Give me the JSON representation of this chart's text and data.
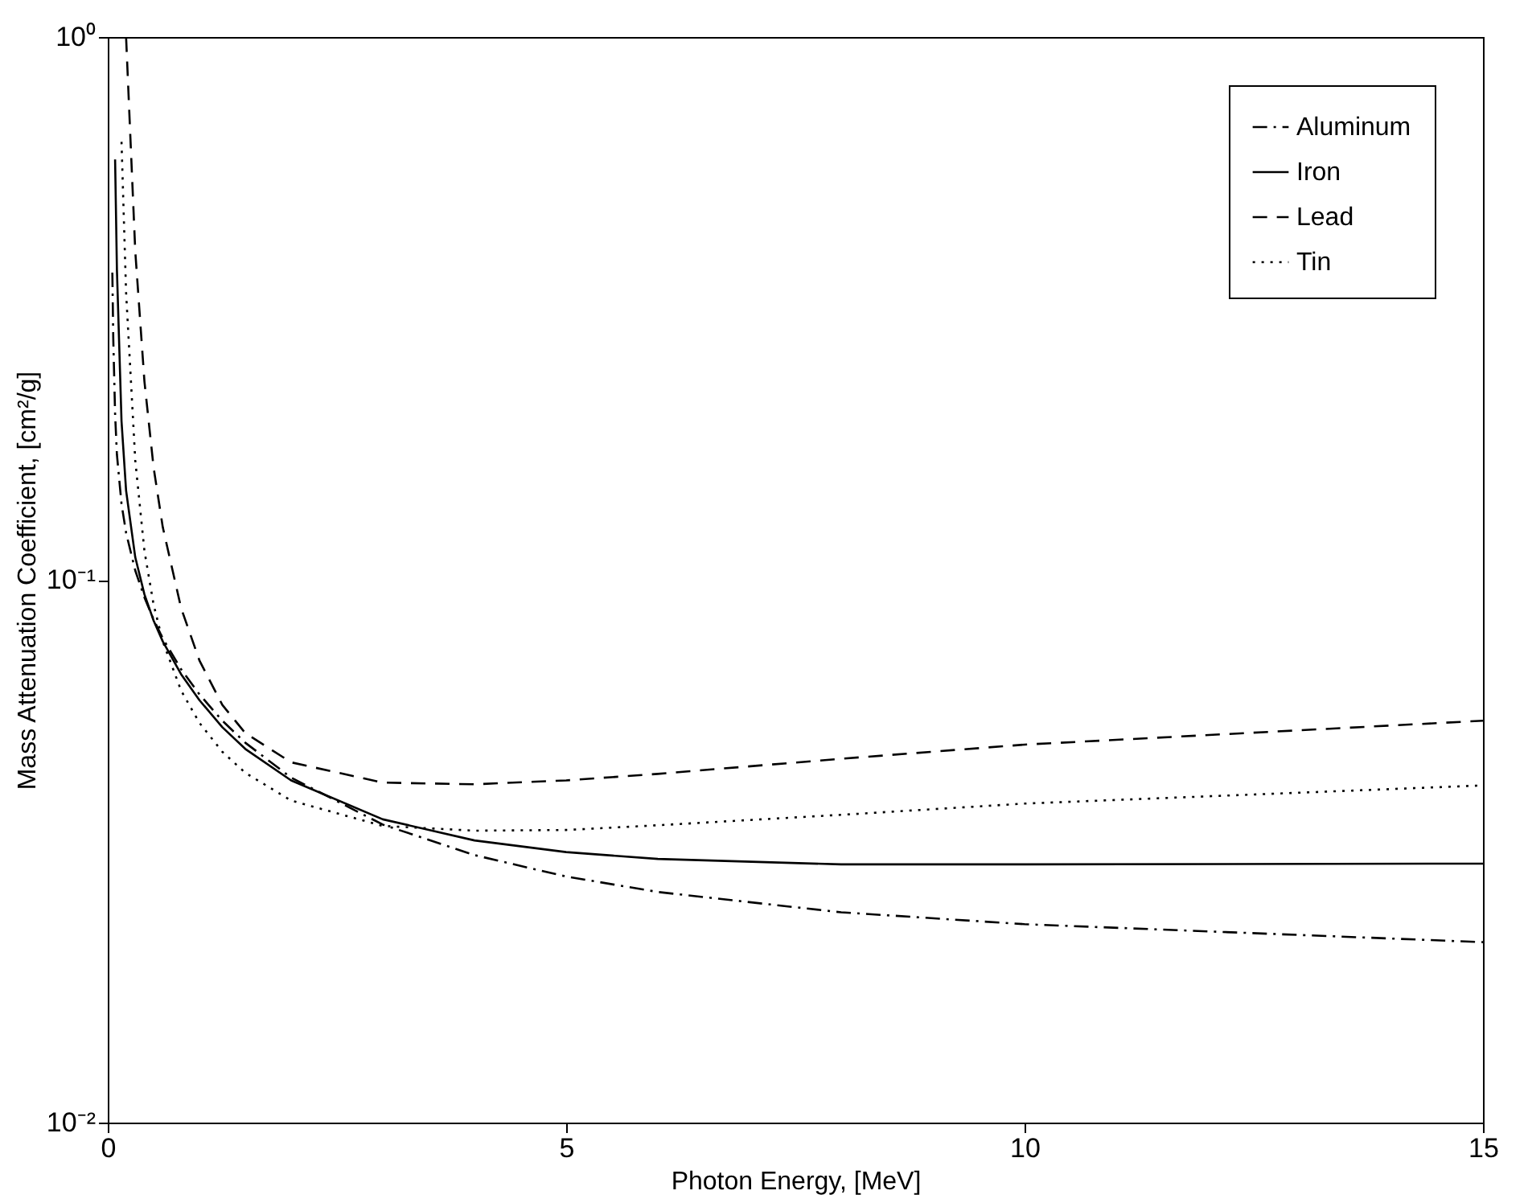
{
  "chart_data": {
    "type": "line",
    "xlabel": "Photon Energy, [MeV]",
    "ylabel": "Mass Attenuation Coefficient, [cm²/g]",
    "log": "y",
    "xlim": [
      0,
      15
    ],
    "xticks": [
      0,
      5,
      10,
      15
    ],
    "ylim": [
      0.01,
      1
    ],
    "yticks": [
      {
        "value": 1,
        "label": "10⁰"
      },
      {
        "value": 0.1,
        "label": "10⁻¹"
      },
      {
        "value": 0.01,
        "label": "10⁻²"
      }
    ],
    "grid": false,
    "legend": "top right",
    "marker": "none",
    "series": [
      {
        "name": "Aluminum",
        "color": "#000000",
        "line_style": "dashdot",
        "x": [
          0.05,
          0.06,
          0.08,
          0.1,
          0.15,
          0.2,
          0.3,
          0.4,
          0.5,
          0.6,
          0.8,
          1,
          1.25,
          1.5,
          2,
          3,
          4,
          5,
          6,
          8,
          10,
          15
        ],
        "values": [
          0.368,
          0.278,
          0.202,
          0.17,
          0.138,
          0.122,
          0.104,
          0.0928,
          0.0845,
          0.078,
          0.0684,
          0.0615,
          0.055,
          0.0501,
          0.0432,
          0.0354,
          0.0311,
          0.0284,
          0.0266,
          0.0244,
          0.0232,
          0.0215
        ]
      },
      {
        "name": "Iron",
        "color": "#000000",
        "line_style": "solid",
        "x": [
          0.08,
          0.1,
          0.15,
          0.2,
          0.3,
          0.4,
          0.5,
          0.6,
          0.8,
          1,
          1.25,
          1.5,
          2,
          3,
          4,
          5,
          6,
          8,
          10,
          15
        ],
        "values": [
          0.595,
          0.372,
          0.196,
          0.146,
          0.11,
          0.094,
          0.0841,
          0.077,
          0.067,
          0.06,
          0.0535,
          0.0488,
          0.0427,
          0.0362,
          0.0331,
          0.0315,
          0.0306,
          0.0299,
          0.0299,
          0.03
        ]
      },
      {
        "name": "Lead",
        "color": "#000000",
        "line_style": "dashed",
        "x": [
          0.2,
          0.3,
          0.4,
          0.5,
          0.6,
          0.8,
          1,
          1.25,
          1.5,
          2,
          3,
          4,
          5,
          6,
          8,
          10,
          15
        ],
        "values": [
          0.998,
          0.403,
          0.232,
          0.161,
          0.125,
          0.0887,
          0.071,
          0.0588,
          0.0522,
          0.0461,
          0.0423,
          0.042,
          0.0427,
          0.0439,
          0.0468,
          0.0497,
          0.055
        ]
      },
      {
        "name": "Tin",
        "color": "#000000",
        "line_style": "dotted",
        "x": [
          0.15,
          0.2,
          0.3,
          0.4,
          0.5,
          0.6,
          0.8,
          1,
          1.25,
          1.5,
          2,
          3,
          4,
          5,
          6,
          8,
          10,
          15
        ],
        "values": [
          0.641,
          0.338,
          0.166,
          0.113,
          0.09,
          0.077,
          0.0625,
          0.0545,
          0.0482,
          0.0441,
          0.0392,
          0.0352,
          0.0345,
          0.0346,
          0.0353,
          0.0369,
          0.0387,
          0.0418
        ]
      }
    ]
  }
}
